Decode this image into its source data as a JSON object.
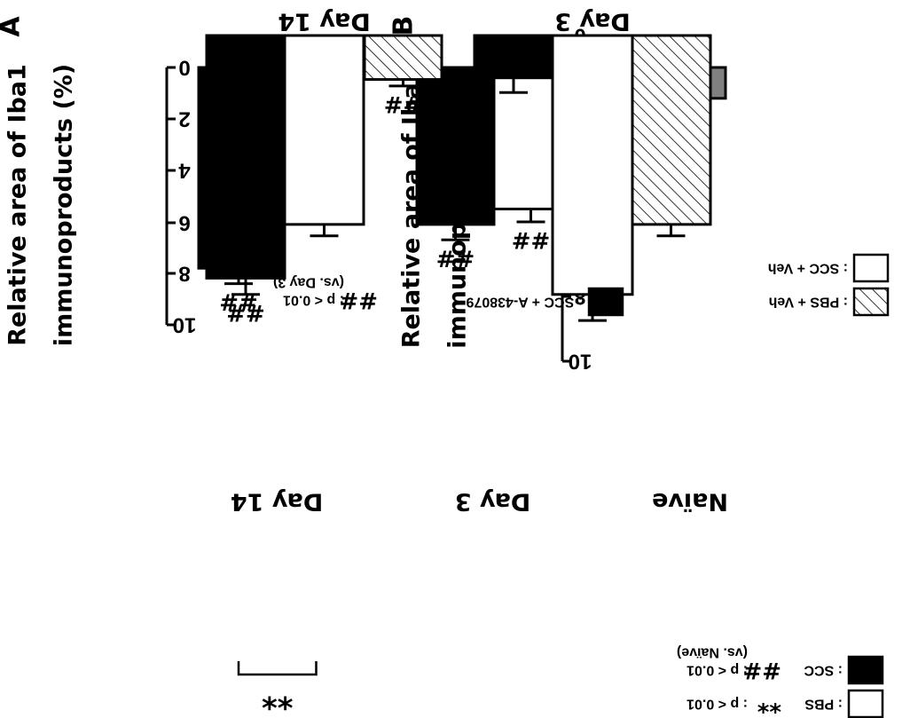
{
  "chart_data": [
    {
      "type": "bar",
      "panel_label": "A",
      "ylabel_line1": "Relative area of Iba1",
      "ylabel_line2": "immunoproducts (%)",
      "ylim": [
        0,
        10
      ],
      "yticks": [
        "0",
        "2",
        "4",
        "6",
        "8",
        "10"
      ],
      "groups": [
        {
          "label": "Naïve",
          "bars": [
            {
              "series": "naive",
              "value": 1.2,
              "error": 0.3,
              "sig": ""
            }
          ]
        },
        {
          "label": "Day 3",
          "bars": [
            {
              "series": "pbs",
              "value": 5.5,
              "error": 0.5,
              "sig": "##"
            },
            {
              "series": "scc",
              "value": 6.1,
              "error": 0.6,
              "sig": "##"
            }
          ]
        },
        {
          "label": "Day 14",
          "bars": [
            {
              "series": "pbs",
              "value": 1.0,
              "error": 0.3,
              "sig": ""
            },
            {
              "series": "scc",
              "value": 7.8,
              "error": 0.6,
              "sig": "##"
            }
          ]
        }
      ],
      "bracket": {
        "group": 2,
        "label": "**"
      },
      "legend": [
        {
          "series": "pbs",
          "label": ": PBS"
        },
        {
          "series": "scc",
          "label": ": SCC"
        }
      ],
      "notes": [
        {
          "mark": "**",
          "line1": ": p < 0.01",
          "line2": ""
        },
        {
          "mark": "##",
          "line1": ": p < 0.01",
          "line2": "(vs. Naïve)"
        }
      ]
    },
    {
      "type": "bar",
      "panel_label": "B",
      "ylabel_line1": "Relative area of Iba1",
      "ylabel_line2": "immunoproducts (%)",
      "ylim": [
        0,
        10
      ],
      "yticks": [
        "0",
        "2",
        "4",
        "6",
        "8",
        "10"
      ],
      "groups": [
        {
          "label": "Day 3",
          "bars": [
            {
              "series": "pbs_veh",
              "value": 5.8,
              "error": 0.35,
              "sig": ""
            },
            {
              "series": "scc_veh",
              "value": 7.95,
              "error": 0.8,
              "sig": ""
            },
            {
              "series": "scc_a",
              "value": 1.3,
              "error": 0.45,
              "sig": ""
            }
          ]
        },
        {
          "label": "Day 14",
          "bars": [
            {
              "series": "pbs_veh",
              "value": 1.35,
              "error": 0.2,
              "sig": "##"
            },
            {
              "series": "scc_veh",
              "value": 5.8,
              "error": 0.35,
              "sig": ""
            },
            {
              "series": "scc_a",
              "value": 7.45,
              "error": 0.5,
              "sig": "##"
            }
          ]
        }
      ],
      "legend": [
        {
          "series": "pbs_veh",
          "label": ": PBS + Veh"
        },
        {
          "series": "scc_veh",
          "label": ": SCC + Veh"
        },
        {
          "series": "scc_a",
          "label": ": SCC + A-438079"
        }
      ],
      "notes": [
        {
          "mark": "##",
          "line1": ": p < 0.01",
          "line2": "(vs. Day 3)"
        }
      ]
    }
  ]
}
